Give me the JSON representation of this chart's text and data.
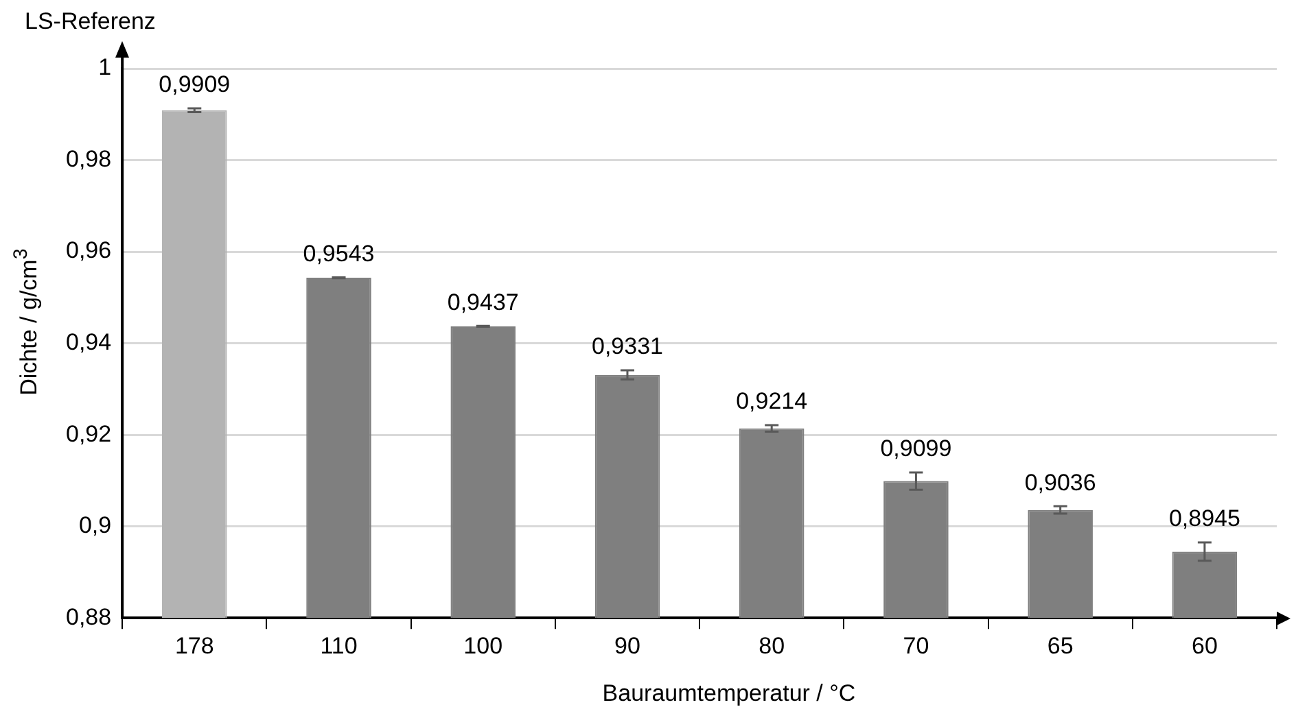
{
  "chart_data": {
    "type": "bar",
    "xlabel": "Bauraumtemperatur / °C",
    "ylabel": "Dichte / g/cm$^{3}$",
    "categories": [
      "178",
      "110",
      "100",
      "90",
      "80",
      "70",
      "65",
      "60"
    ],
    "values": [
      0.9909,
      0.9543,
      0.9437,
      0.9331,
      0.9214,
      0.9099,
      0.9036,
      0.8945
    ],
    "errors": [
      0.0004,
      0.0001,
      0.0001,
      0.001,
      0.0007,
      0.0019,
      0.0008,
      0.002
    ],
    "colors": [
      "#b3b3b3",
      "#7f7f7f",
      "#7f7f7f",
      "#7f7f7f",
      "#7f7f7f",
      "#7f7f7f",
      "#7f7f7f",
      "#7f7f7f"
    ],
    "value_labels": [
      "0,9909",
      "0,9543",
      "0,9437",
      "0,9331",
      "0,9214",
      "0,9099",
      "0,9036",
      "0,8945"
    ],
    "ylim": [
      0.88,
      1
    ],
    "yticks": [
      {
        "value": 0.88,
        "label": "0,88"
      },
      {
        "value": 0.9,
        "label": "0,9"
      },
      {
        "value": 0.92,
        "label": "0,92"
      },
      {
        "value": 0.94,
        "label": "0,94"
      },
      {
        "value": 0.96,
        "label": "0,96"
      },
      {
        "value": 0.98,
        "label": "0,98"
      },
      1
    ],
    "grid": "y",
    "legend": false,
    "annotations": [
      "LS-Referenz"
    ]
  }
}
